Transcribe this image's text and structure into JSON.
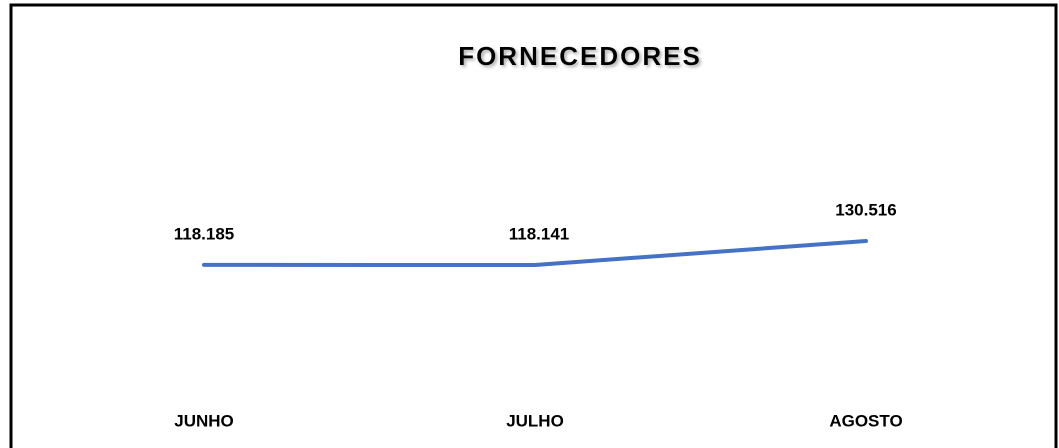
{
  "chart_data": {
    "type": "line",
    "title": "FORNECEDORES",
    "categories": [
      "JUNHO",
      "JULHO",
      "AGOSTO"
    ],
    "series": [
      {
        "name": null,
        "color": "#4472c4",
        "values": [
          118185,
          118141,
          130516
        ],
        "value_labels": [
          "118.185",
          "118.141",
          "130.516"
        ]
      }
    ]
  }
}
